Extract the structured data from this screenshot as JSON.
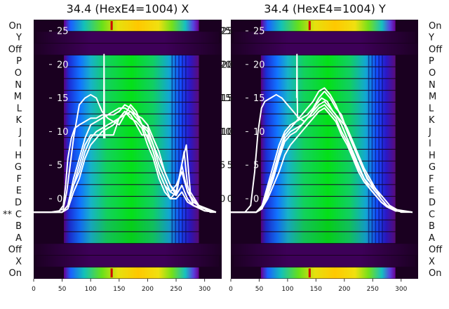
{
  "chart_data": [
    {
      "type": "heatmap",
      "title": "34.4 (HexE4=1004) X",
      "xlabel": "",
      "ylabel": "",
      "xlim": [
        0,
        330
      ],
      "x_ticks": [
        0,
        50,
        100,
        150,
        200,
        250,
        300
      ],
      "y_overlay_ticks": [
        0,
        5,
        10,
        15,
        20,
        25
      ],
      "row_labels": [
        "On",
        "Y",
        "Off",
        "P",
        "O",
        "N",
        "M",
        "L",
        "K",
        "J",
        "I",
        "H",
        "G",
        "F",
        "E",
        "D",
        "C",
        "B",
        "A",
        "Off",
        "X",
        "On"
      ],
      "marked_row": "C",
      "marker_text": "**",
      "heatmap_x_range": [
        53,
        290
      ],
      "overlay_lines": [
        {
          "x": [
            0,
            30,
            45,
            52,
            56,
            60,
            66,
            72,
            80,
            90,
            100,
            110,
            120,
            130,
            140,
            150,
            160,
            170,
            180,
            190,
            200,
            210,
            220,
            230,
            240,
            250,
            255,
            260,
            265,
            270,
            280,
            290,
            300,
            310,
            320
          ],
          "y": [
            -2,
            -2,
            -1.8,
            -1,
            2,
            6,
            9,
            10.5,
            11,
            11.5,
            12,
            12,
            12.5,
            12.5,
            13,
            13.5,
            13.5,
            13,
            12.5,
            12,
            11,
            9,
            7,
            4,
            2,
            1,
            3,
            5,
            3,
            1,
            -0.5,
            -1,
            -1.5,
            -2,
            -2
          ]
        },
        {
          "x": [
            0,
            40,
            52,
            58,
            64,
            70,
            80,
            90,
            100,
            110,
            120,
            130,
            140,
            150,
            160,
            170,
            180,
            190,
            200,
            210,
            220,
            230,
            240,
            250,
            258,
            264,
            270,
            280,
            300,
            320
          ],
          "y": [
            -2,
            -2,
            -1.5,
            1,
            5,
            9,
            14,
            15,
            15.5,
            15,
            13,
            12,
            11.5,
            11,
            12.5,
            14,
            13,
            11,
            10.5,
            8,
            5,
            3,
            1,
            0.5,
            4,
            7,
            2,
            -1,
            -1.8,
            -2
          ]
        },
        {
          "x": [
            0,
            50,
            60,
            70,
            80,
            90,
            100,
            110,
            120,
            130,
            140,
            150,
            160,
            170,
            180,
            190,
            200,
            210,
            220,
            230,
            240,
            250,
            255,
            262,
            268,
            275,
            290,
            320
          ],
          "y": [
            -2,
            -2,
            -1,
            2,
            5,
            8,
            9.5,
            9.5,
            9.5,
            9.5,
            9.5,
            12,
            13,
            12.5,
            11,
            9.5,
            9.5,
            7,
            4,
            2,
            0,
            1,
            3,
            6,
            8,
            1,
            -1,
            -2
          ]
        },
        {
          "x": [
            0,
            50,
            60,
            70,
            80,
            90,
            100,
            110,
            120,
            130,
            140,
            150,
            160,
            170,
            180,
            190,
            200,
            210,
            220,
            230,
            240,
            250,
            260,
            270,
            280,
            300,
            320
          ],
          "y": [
            -2,
            -2,
            -1.5,
            1,
            3,
            6,
            8,
            9,
            10,
            10.5,
            11,
            12,
            12.5,
            13,
            12,
            11,
            10,
            8,
            6,
            4,
            2,
            0.5,
            2,
            0,
            -1,
            -1.5,
            -2
          ]
        },
        {
          "x": [
            0,
            50,
            60,
            70,
            80,
            90,
            100,
            110,
            120,
            130,
            140,
            150,
            160,
            170,
            180,
            190,
            200,
            210,
            220,
            230,
            240,
            250,
            260,
            270,
            280,
            300,
            320
          ],
          "y": [
            -2,
            -2,
            -1,
            2,
            4,
            7,
            9,
            10,
            10.5,
            11,
            11.5,
            12,
            13,
            12,
            11.5,
            10.5,
            8,
            6,
            3,
            1,
            0,
            0,
            1,
            -0.5,
            -1,
            -1.8,
            -2
          ]
        },
        {
          "x": [
            0,
            50,
            60,
            70,
            80,
            90,
            100,
            110,
            120,
            130,
            140,
            150,
            160,
            170,
            180,
            190,
            200,
            210,
            220,
            230,
            240,
            250,
            260,
            270,
            290,
            320
          ],
          "y": [
            -2,
            -2,
            -1,
            3,
            6,
            9,
            11,
            11.5,
            12,
            12.5,
            12.5,
            13,
            14,
            13.5,
            12.5,
            11,
            9,
            7,
            4,
            2,
            1,
            2,
            4,
            1,
            -1.2,
            -2
          ]
        },
        {
          "x": [
            123,
            123.5,
            124,
            124.5,
            125
          ],
          "y": [
            9,
            21.5,
            13,
            10,
            9
          ]
        }
      ]
    },
    {
      "type": "heatmap",
      "title": "34.4 (HexE4=1004) Y",
      "xlabel": "",
      "ylabel": "",
      "xlim": [
        0,
        330
      ],
      "x_ticks": [
        0,
        50,
        100,
        150,
        200,
        250,
        300
      ],
      "y_overlay_ticks": [
        0,
        5,
        10,
        15,
        20,
        25
      ],
      "row_labels": [
        "On",
        "Y",
        "Off",
        "P",
        "O",
        "N",
        "M",
        "L",
        "K",
        "J",
        "I",
        "H",
        "G",
        "F",
        "E",
        "D",
        "C",
        "B",
        "A",
        "Off",
        "X",
        "On"
      ],
      "heatmap_x_range": [
        53,
        290
      ],
      "overlay_lines": [
        {
          "x": [
            0,
            25,
            35,
            42,
            48,
            54,
            60,
            70,
            80,
            90,
            100,
            110,
            120,
            130,
            140,
            150,
            160,
            170,
            180,
            190,
            200,
            210,
            220,
            230,
            240,
            250,
            260,
            270,
            280,
            290,
            300,
            320
          ],
          "y": [
            -2,
            -2,
            -1,
            4,
            10,
            13.5,
            14.5,
            15,
            15.5,
            15,
            14,
            13,
            12,
            11.5,
            12.5,
            14,
            15,
            14.5,
            13,
            12,
            11,
            9,
            7,
            5,
            3,
            2,
            1,
            0,
            -1,
            -1.5,
            -2,
            -2
          ]
        },
        {
          "x": [
            0,
            45,
            55,
            65,
            75,
            85,
            95,
            105,
            115,
            125,
            135,
            145,
            155,
            165,
            175,
            185,
            195,
            205,
            215,
            225,
            235,
            245,
            255,
            265,
            275,
            290,
            320
          ],
          "y": [
            -2,
            -2,
            -1,
            1.5,
            4,
            7,
            9.5,
            10.5,
            11.5,
            12,
            12.5,
            13.5,
            15,
            16,
            15,
            13.5,
            12.5,
            10,
            8,
            6,
            4,
            2.5,
            1,
            0,
            -1,
            -1.8,
            -2
          ]
        },
        {
          "x": [
            0,
            45,
            55,
            65,
            75,
            85,
            95,
            105,
            115,
            125,
            135,
            145,
            155,
            165,
            175,
            185,
            195,
            205,
            215,
            225,
            235,
            245,
            255,
            265,
            275,
            290,
            320
          ],
          "y": [
            -2,
            -2,
            -1.5,
            0.5,
            3,
            6,
            8.5,
            9.5,
            10,
            11,
            12,
            13,
            14,
            14.5,
            13.5,
            12.5,
            11,
            9,
            7,
            5,
            3,
            1.5,
            0.5,
            -0.5,
            -1.2,
            -1.8,
            -2
          ]
        },
        {
          "x": [
            0,
            45,
            55,
            65,
            75,
            85,
            95,
            105,
            115,
            125,
            135,
            145,
            155,
            165,
            175,
            185,
            195,
            205,
            215,
            225,
            235,
            245,
            255,
            265,
            275,
            290,
            320
          ],
          "y": [
            -2,
            -2,
            -1,
            2,
            5,
            8,
            10,
            11,
            11.5,
            12.5,
            13.5,
            14.5,
            16,
            16.5,
            15.5,
            14,
            12,
            10.5,
            8.5,
            6.5,
            4.5,
            3,
            1.5,
            0,
            -1,
            -1.6,
            -2
          ]
        },
        {
          "x": [
            0,
            45,
            55,
            65,
            75,
            85,
            95,
            105,
            115,
            125,
            135,
            145,
            155,
            165,
            175,
            185,
            195,
            205,
            215,
            225,
            235,
            245,
            255,
            265,
            275,
            290,
            320
          ],
          "y": [
            -2,
            -2,
            -1.2,
            1,
            3.5,
            6.5,
            9,
            10,
            10.5,
            11,
            12,
            12.5,
            13.5,
            14,
            13,
            12,
            10,
            8.5,
            6.5,
            4.5,
            3,
            2,
            1,
            0,
            -1,
            -1.8,
            -2
          ]
        },
        {
          "x": [
            0,
            45,
            55,
            65,
            75,
            85,
            95,
            105,
            115,
            125,
            135,
            145,
            155,
            165,
            175,
            185,
            195,
            205,
            215,
            225,
            235,
            245,
            255,
            265,
            275,
            290,
            320
          ],
          "y": [
            -2,
            -2,
            -1.4,
            0,
            2,
            4,
            6.5,
            8,
            9,
            10,
            11,
            12,
            13,
            13.5,
            12.5,
            11.5,
            9.5,
            8,
            6,
            4,
            2.5,
            1.5,
            0.5,
            -0.5,
            -1.2,
            -1.8,
            -2
          ]
        },
        {
          "x": [
            116,
            116.5,
            117,
            117.5
          ],
          "y": [
            15,
            21.5,
            15,
            12
          ]
        }
      ]
    }
  ]
}
